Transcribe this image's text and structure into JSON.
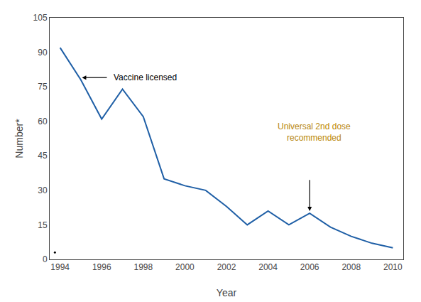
{
  "chart_data": {
    "type": "line",
    "x_label": "Year",
    "y_label": "Number*",
    "x": [
      1994,
      1995,
      1996,
      1997,
      1998,
      1999,
      2000,
      2001,
      2002,
      2003,
      2004,
      2005,
      2006,
      2007,
      2008,
      2009,
      2010
    ],
    "series": [
      {
        "type": "line",
        "color": "#1f5fa6",
        "values": [
          92,
          78,
          61,
          74,
          62,
          35,
          32,
          30,
          23,
          15,
          21,
          15,
          20,
          14,
          10,
          7,
          5
        ]
      },
      {
        "type": "scatter",
        "marker": "dot",
        "color": "#000000",
        "x": [
          1993.75
        ],
        "values": [
          3
        ]
      }
    ],
    "xlim": [
      1993.5,
      2010.5
    ],
    "ylim": [
      0,
      105
    ],
    "xticks": [
      1994,
      1996,
      1998,
      2000,
      2002,
      2004,
      2006,
      2008,
      2010
    ],
    "yticks": [
      0,
      15,
      30,
      45,
      60,
      75,
      90,
      105
    ],
    "grid": false,
    "annotations": [
      {
        "text": "Vaccine licensed",
        "x": 1996.5,
        "y": 79,
        "color": "#000000",
        "arrow_from": [
          1996.3,
          79
        ],
        "arrow_to": [
          1995.05,
          79
        ]
      },
      {
        "text": "Universal 2nd dose\nrecommended",
        "x": 2006.2,
        "y": 50,
        "color": "#b8860b",
        "arrow_from": [
          2006,
          35
        ],
        "arrow_to": [
          2006,
          21
        ]
      }
    ]
  }
}
